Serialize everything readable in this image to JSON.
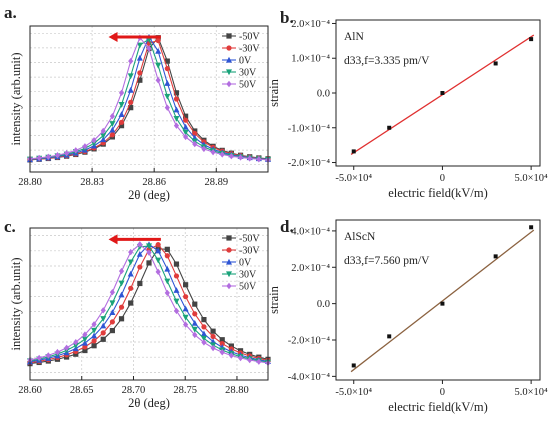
{
  "chart_data": [
    {
      "panel": "a.",
      "type": "line",
      "xlabel": "2θ (deg)",
      "ylabel": "intensity (arb.unit)",
      "xlim": [
        28.8,
        28.915
      ],
      "xticks": [
        "28.80",
        "28.83",
        "28.86",
        "28.89"
      ],
      "xtick_values": [
        28.8,
        28.83,
        28.86,
        28.89
      ],
      "ylim": [
        0,
        1.08
      ],
      "arrow": "leftward red arrow above peaks",
      "legend_position": "top-right",
      "series": [
        {
          "name": "-50V",
          "color": "#444444",
          "marker": "square",
          "center": 28.861,
          "height": 1.0
        },
        {
          "name": "-30V",
          "color": "#e03c3c",
          "marker": "circle",
          "center": 28.86,
          "height": 1.0
        },
        {
          "name": "0V",
          "color": "#2f55d4",
          "marker": "triangle-up",
          "center": 28.858,
          "height": 1.0
        },
        {
          "name": "30V",
          "color": "#1aa37a",
          "marker": "triangle-down",
          "center": 28.856,
          "height": 1.0
        },
        {
          "name": "50V",
          "color": "#b36ee0",
          "marker": "diamond",
          "center": 28.854,
          "height": 1.0
        }
      ],
      "peak_width": 0.011
    },
    {
      "panel": "b.",
      "type": "scatter",
      "title": "AlN",
      "annotation": "d33,f=3.335 pm/V",
      "xlabel": "electric field(kV/m)",
      "ylabel": "strain",
      "xlim": [
        -60000,
        55000
      ],
      "ylim": [
        -0.00021,
        0.00021
      ],
      "xticks": [
        "-5.0×10⁴",
        "0",
        "5.0×10⁴"
      ],
      "xtick_values": [
        -50000,
        0,
        50000
      ],
      "yticks": [
        "-2.0×10⁻⁴",
        "-1.0×10⁻⁴",
        "0.0",
        "1.0×10⁻⁴",
        "2.0×10⁻⁴"
      ],
      "ytick_values": [
        -0.0002,
        -0.0001,
        0,
        0.0001,
        0.0002
      ],
      "x": [
        -50000,
        -30000,
        0,
        30000,
        50000
      ],
      "y": [
        -0.000168,
        -0.0001,
        0.0,
        8.5e-05,
        0.000155
      ],
      "fit_line": {
        "slope": 3.335e-09,
        "intercept": -5e-06,
        "color": "#e03030"
      }
    },
    {
      "panel": "c.",
      "type": "line",
      "xlabel": "2θ (deg)",
      "ylabel": "intensity (arb.unit)",
      "xlim": [
        28.6,
        28.83
      ],
      "xticks": [
        "28.60",
        "28.65",
        "28.70",
        "28.75",
        "28.80"
      ],
      "xtick_values": [
        28.6,
        28.65,
        28.7,
        28.75,
        28.8
      ],
      "ylim": [
        0,
        1.12
      ],
      "arrow": "leftward red arrow above peaks",
      "legend_position": "top-right",
      "series": [
        {
          "name": "-50V",
          "color": "#444444",
          "marker": "square",
          "center": 28.728,
          "height": 0.98
        },
        {
          "name": "-30V",
          "color": "#e03c3c",
          "marker": "circle",
          "center": 28.722,
          "height": 1.0
        },
        {
          "name": "0V",
          "color": "#2f55d4",
          "marker": "triangle-up",
          "center": 28.716,
          "height": 1.0
        },
        {
          "name": "30V",
          "color": "#1aa37a",
          "marker": "triangle-down",
          "center": 28.711,
          "height": 1.0
        },
        {
          "name": "50V",
          "color": "#b36ee0",
          "marker": "diamond",
          "center": 28.706,
          "height": 1.0
        }
      ],
      "peak_width": 0.034
    },
    {
      "panel": "d.",
      "type": "scatter",
      "title": "AlScN",
      "annotation": "d33,f=7.560 pm/V",
      "xlabel": "electric field(kV/m)",
      "ylabel": "strain",
      "xlim": [
        -60000,
        55000
      ],
      "ylim": [
        -0.00042,
        0.00046
      ],
      "xticks": [
        "-5.0×10⁴",
        "0",
        "5.0×10⁴"
      ],
      "xtick_values": [
        -50000,
        0,
        50000
      ],
      "yticks": [
        "-4.0×10⁻⁴",
        "-2.0×10⁻⁴",
        "0.0",
        "2.0×10⁻⁴",
        "4.0×10⁻⁴"
      ],
      "ytick_values": [
        -0.0004,
        -0.0002,
        0,
        0.0002,
        0.0004
      ],
      "x": [
        -50000,
        -30000,
        0,
        30000,
        50000
      ],
      "y": [
        -0.00034,
        -0.00018,
        0.0,
        0.00026,
        0.00042
      ],
      "fit_line": {
        "slope": 7.56e-09,
        "intercept": 1.5e-05,
        "color": "#8b6240"
      }
    }
  ]
}
